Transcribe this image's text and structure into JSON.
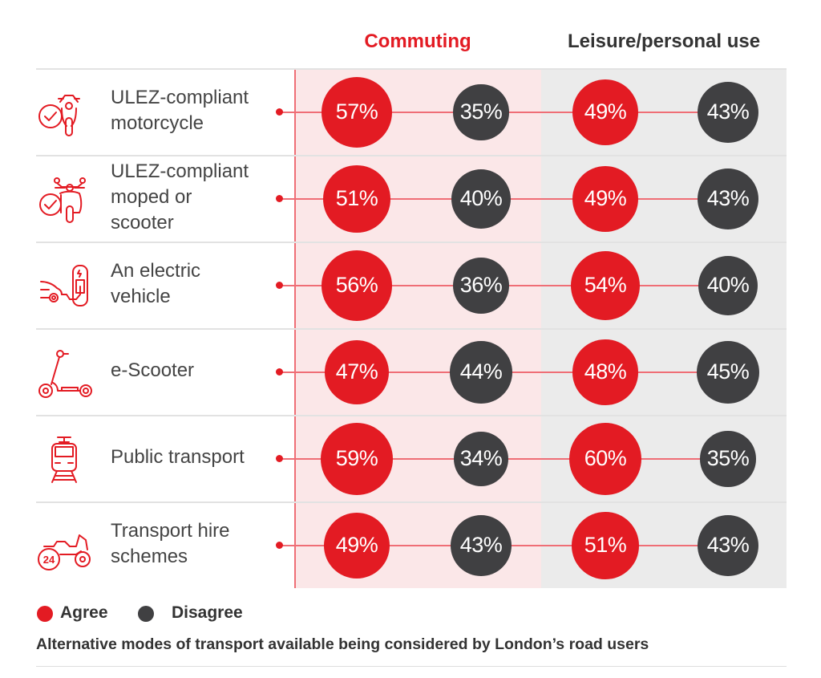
{
  "chart_data": {
    "type": "bubble-table",
    "column_groups": [
      {
        "label": "Commuting",
        "color": "#e31b23"
      },
      {
        "label": "Leisure/personal use",
        "color": "#333333"
      }
    ],
    "legend": [
      {
        "label": "Agree",
        "color": "#e31b23"
      },
      {
        "label": "Disagree",
        "color": "#404042"
      }
    ],
    "rows": [
      {
        "label": "ULEZ-compliant\nmotorcycle",
        "icon": "motorcycle-check-icon",
        "commuting": {
          "agree": "57%",
          "disagree": "35%"
        },
        "leisure": {
          "agree": "49%",
          "disagree": "43%"
        }
      },
      {
        "label": "ULEZ-compliant\nmoped or\nscooter",
        "icon": "moped-check-icon",
        "commuting": {
          "agree": "51%",
          "disagree": "40%"
        },
        "leisure": {
          "agree": "49%",
          "disagree": "43%"
        }
      },
      {
        "label": "An electric\nvehicle",
        "icon": "electric-car-charger-icon",
        "commuting": {
          "agree": "56%",
          "disagree": "36%"
        },
        "leisure": {
          "agree": "54%",
          "disagree": "40%"
        }
      },
      {
        "label": "e-Scooter",
        "icon": "e-scooter-icon",
        "commuting": {
          "agree": "47%",
          "disagree": "44%"
        },
        "leisure": {
          "agree": "48%",
          "disagree": "45%"
        }
      },
      {
        "label": "Public transport",
        "icon": "tram-icon",
        "commuting": {
          "agree": "59%",
          "disagree": "34%"
        },
        "leisure": {
          "agree": "60%",
          "disagree": "35%"
        }
      },
      {
        "label": "Transport hire\nschemes",
        "icon": "motorbike-24h-icon",
        "commuting": {
          "agree": "49%",
          "disagree": "43%"
        },
        "leisure": {
          "agree": "51%",
          "disagree": "43%"
        }
      }
    ],
    "caption": "Alternative modes of transport available being considered by London’s road users"
  },
  "colors": {
    "agree": "#e31b23",
    "disagree": "#404042",
    "commuting_bg": "#fbe7e8",
    "leisure_bg": "#ebebeb"
  }
}
